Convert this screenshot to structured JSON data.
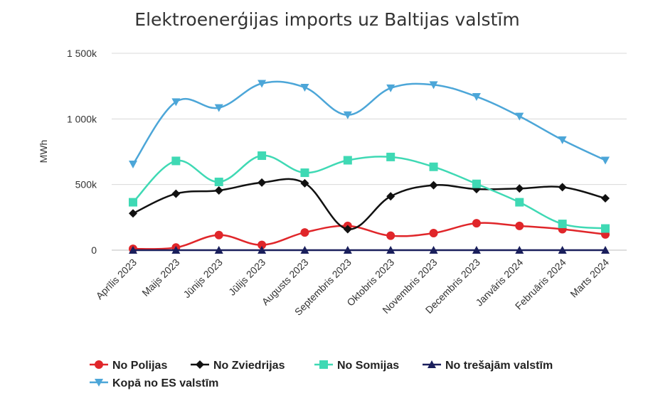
{
  "chart_data": {
    "type": "line",
    "title": "Elektroenerģijas imports uz Baltijas valstīm",
    "xlabel": "",
    "ylabel": "MWh",
    "ylim": [
      0,
      1500000
    ],
    "yticks": [
      0,
      500000,
      1000000,
      1500000
    ],
    "ytick_labels": [
      "0",
      "500k",
      "1 000k",
      "1 500k"
    ],
    "grid": true,
    "legend_position": "bottom",
    "categories": [
      "Aprīlis 2023",
      "Maijs 2023",
      "Jūnijs 2023",
      "Jūlijs 2023",
      "Augusts 2023",
      "Septembris 2023",
      "Oktobris 2023",
      "Novembris 2023",
      "Decembris 2023",
      "Janvāris 2024",
      "Februāris 2024",
      "Marts 2024"
    ],
    "series": [
      {
        "name": "No Polijas",
        "color": "#e0262a",
        "marker": "circle",
        "values": [
          10000,
          20000,
          115000,
          40000,
          135000,
          185000,
          110000,
          130000,
          205000,
          185000,
          160000,
          120000
        ]
      },
      {
        "name": "No Zviedrijas",
        "color": "#111111",
        "marker": "diamond",
        "values": [
          280000,
          430000,
          455000,
          515000,
          510000,
          160000,
          410000,
          495000,
          465000,
          470000,
          480000,
          395000
        ]
      },
      {
        "name": "No Somijas",
        "color": "#3fd9b4",
        "marker": "square",
        "values": [
          365000,
          680000,
          520000,
          720000,
          590000,
          685000,
          710000,
          635000,
          505000,
          365000,
          200000,
          165000
        ]
      },
      {
        "name": "No trešajām valstīm",
        "color": "#1a1f5c",
        "marker": "triangle-up",
        "values": [
          0,
          0,
          0,
          0,
          0,
          0,
          0,
          0,
          0,
          0,
          0,
          0
        ]
      },
      {
        "name": "Kopā no ES valstīm",
        "color": "#4ca6d8",
        "marker": "triangle-down",
        "values": [
          655000,
          1130000,
          1085000,
          1270000,
          1240000,
          1030000,
          1235000,
          1260000,
          1170000,
          1020000,
          840000,
          685000
        ]
      }
    ]
  }
}
